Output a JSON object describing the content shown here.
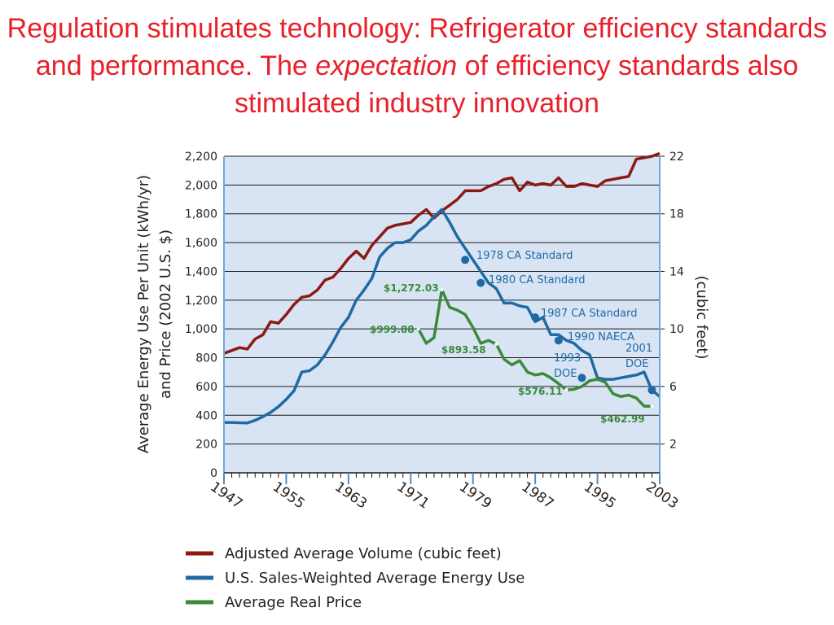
{
  "slide": {
    "title_part1": "Regulation stimulates technology: Refrigerator efficiency standards and performance. The ",
    "title_emph": "expectation",
    "title_part2": " of efficiency standards also stimulated industry innovation"
  },
  "chart_data": {
    "type": "line",
    "ylabel_left_line1": "Average Energy Use Per Unit (kWh/yr)",
    "ylabel_left_line2": "and Price (2002 U.S. $)",
    "ylabel_right": "(cubic feet)",
    "xlim": [
      1947,
      2003
    ],
    "ylim_left": [
      0,
      2200
    ],
    "ylim_right": [
      0,
      22
    ],
    "x_ticks": [
      "1947",
      "1955",
      "1963",
      "1971",
      "1979",
      "1987",
      "1995",
      "2003"
    ],
    "y_ticks_left": [
      "0",
      "200",
      "400",
      "600",
      "800",
      "1,000",
      "1,200",
      "1,400",
      "1,600",
      "1,800",
      "2,000",
      "2,200"
    ],
    "y_ticks_right": [
      "2",
      "6",
      "10",
      "14",
      "18",
      "22"
    ],
    "grid": true,
    "colors": {
      "volume": "#8b1a12",
      "energy": "#1f6aa5",
      "price": "#3a8a3a",
      "plot_bg": "#d8e4f4",
      "title": "#e8202a"
    },
    "series": [
      {
        "name": "Adjusted Average Volume (cubic feet)",
        "axis": "right",
        "color": "#8b1a12",
        "x": [
          1947,
          1948,
          1949,
          1950,
          1951,
          1952,
          1953,
          1954,
          1955,
          1956,
          1957,
          1958,
          1959,
          1960,
          1961,
          1962,
          1963,
          1964,
          1965,
          1966,
          1967,
          1968,
          1969,
          1970,
          1971,
          1972,
          1973,
          1974,
          1975,
          1976,
          1977,
          1978,
          1979,
          1980,
          1981,
          1982,
          1983,
          1984,
          1985,
          1986,
          1987,
          1988,
          1989,
          1990,
          1991,
          1992,
          1993,
          1994,
          1995,
          1996,
          1997,
          1998,
          1999,
          2000,
          2001,
          2002,
          2003
        ],
        "values": [
          8.3,
          8.5,
          8.7,
          8.6,
          9.3,
          9.6,
          10.5,
          10.4,
          11.0,
          11.7,
          12.2,
          12.3,
          12.7,
          13.4,
          13.6,
          14.2,
          14.9,
          15.4,
          14.9,
          15.8,
          16.4,
          17.0,
          17.2,
          17.3,
          17.4,
          17.9,
          18.3,
          17.7,
          18.2,
          18.6,
          19.0,
          19.6,
          19.6,
          19.6,
          19.9,
          20.1,
          20.4,
          20.5,
          19.6,
          20.2,
          20.0,
          20.1,
          20.0,
          20.5,
          19.9,
          19.9,
          20.1,
          20.0,
          19.9,
          20.3,
          20.4,
          20.5,
          20.6,
          21.8,
          21.9,
          22.0,
          22.2
        ]
      },
      {
        "name": "U.S. Sales-Weighted Average Energy Use",
        "axis": "left",
        "color": "#1f6aa5",
        "x": [
          1947,
          1948,
          1949,
          1950,
          1951,
          1952,
          1953,
          1954,
          1955,
          1956,
          1957,
          1958,
          1959,
          1960,
          1961,
          1962,
          1963,
          1964,
          1965,
          1966,
          1967,
          1968,
          1969,
          1970,
          1971,
          1972,
          1973,
          1974,
          1975,
          1976,
          1977,
          1978,
          1979,
          1980,
          1981,
          1982,
          1983,
          1984,
          1985,
          1986,
          1987,
          1988,
          1989,
          1990,
          1991,
          1992,
          1993,
          1994,
          1995,
          1996,
          1997,
          1998,
          1999,
          2000,
          2001,
          2002,
          2003
        ],
        "values": [
          350,
          350,
          348,
          346,
          365,
          390,
          420,
          460,
          510,
          570,
          700,
          710,
          750,
          820,
          910,
          1010,
          1080,
          1200,
          1270,
          1350,
          1500,
          1560,
          1600,
          1600,
          1620,
          1680,
          1720,
          1780,
          1830,
          1740,
          1640,
          1560,
          1480,
          1400,
          1320,
          1280,
          1180,
          1180,
          1160,
          1150,
          1050,
          1080,
          960,
          960,
          920,
          900,
          850,
          820,
          660,
          650,
          650,
          660,
          670,
          680,
          700,
          575,
          530
        ]
      },
      {
        "name": "Average Real Price",
        "axis": "left",
        "color": "#3a8a3a",
        "x": [
          1972,
          1973,
          1974,
          1975,
          1976,
          1977,
          1978,
          1979,
          1980,
          1981,
          1982,
          1983,
          1984,
          1985,
          1986,
          1987,
          1988,
          1989,
          1990,
          1991,
          1992,
          1993,
          1994,
          1995,
          1996,
          1997,
          1998,
          1999,
          2000,
          2001,
          2002
        ],
        "values": [
          999.88,
          900,
          940,
          1272.03,
          1150,
          1130,
          1100,
          1010,
          900,
          920,
          893.58,
          790,
          750,
          780,
          700,
          680,
          690,
          660,
          620,
          576.11,
          580,
          600,
          640,
          650,
          630,
          550,
          530,
          540,
          520,
          462.99,
          462.99
        ]
      }
    ],
    "price_labels": [
      "$1,272.03",
      "$999.88",
      "$893.58",
      "$576.11",
      "$462.99"
    ],
    "standard_annotations": [
      "1978 CA Standard",
      "1980 CA Standard",
      "1987 CA Standard",
      "1990 NAECA",
      "1993 DOE",
      "2001 DOE"
    ],
    "annotation_line1": [
      "1993",
      "2001"
    ],
    "annotation_line2": [
      "DOE",
      "DOE"
    ],
    "legend": [
      "Adjusted Average Volume (cubic feet)",
      "U.S. Sales-Weighted Average Energy Use",
      "Average Real Price"
    ],
    "legend_position": "bottom"
  }
}
